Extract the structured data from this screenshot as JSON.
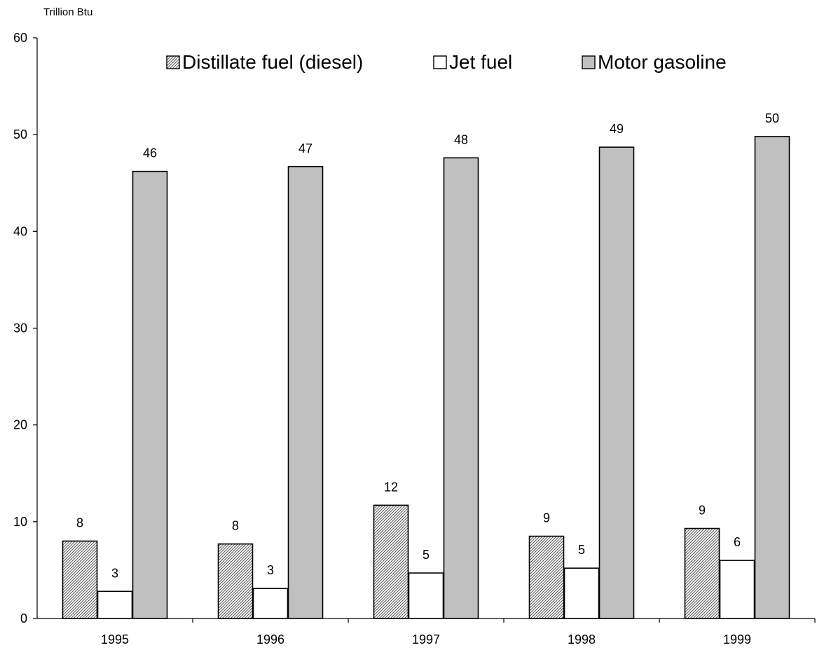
{
  "chart_data": {
    "type": "bar",
    "title": "",
    "ylabel": "Trillion Btu",
    "xlabel": "",
    "categories": [
      "1995",
      "1996",
      "1997",
      "1998",
      "1999"
    ],
    "ylim": [
      0,
      60
    ],
    "yticks": [
      0,
      10,
      20,
      30,
      40,
      50,
      60
    ],
    "grid": false,
    "legend_position": "top",
    "series": [
      {
        "name": "Distillate fuel (diesel)",
        "values": [
          8.0,
          7.7,
          11.7,
          8.5,
          9.3
        ],
        "labels": [
          "8",
          "8",
          "12",
          "9",
          "9"
        ],
        "fill": "hatched",
        "color": "#555555"
      },
      {
        "name": "Jet fuel",
        "values": [
          2.8,
          3.1,
          4.7,
          5.2,
          6.0
        ],
        "labels": [
          "3",
          "3",
          "5",
          "5",
          "6"
        ],
        "fill": "solid",
        "color": "#ffffff"
      },
      {
        "name": "Motor gasoline",
        "values": [
          46.2,
          46.7,
          47.6,
          48.7,
          49.8
        ],
        "labels": [
          "46",
          "47",
          "48",
          "49",
          "50"
        ],
        "fill": "solid",
        "color": "#c0c0c0"
      }
    ]
  }
}
